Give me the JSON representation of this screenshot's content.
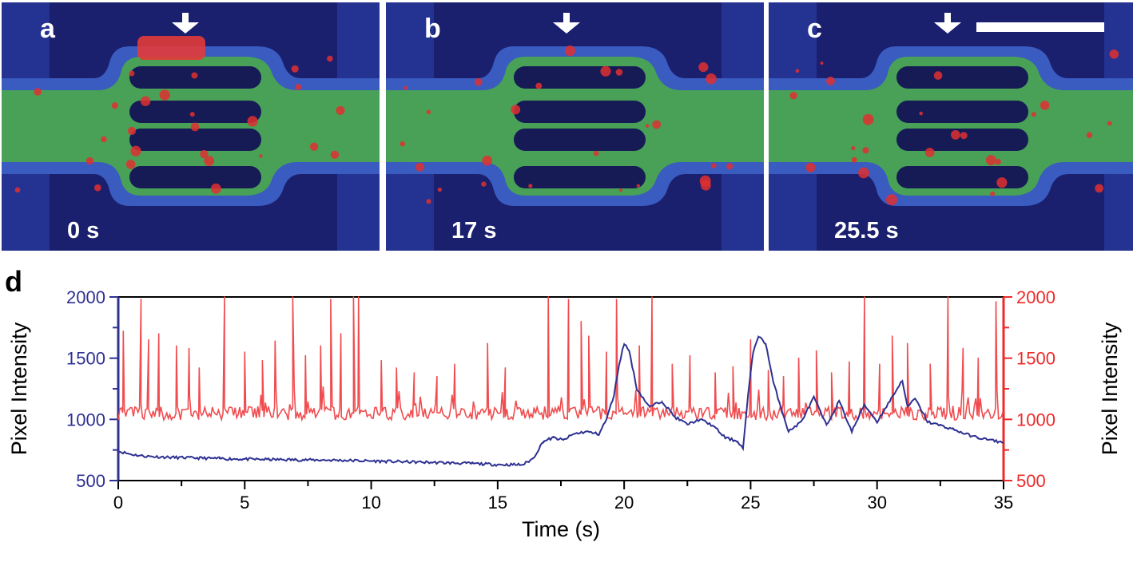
{
  "panels": [
    {
      "label": "a",
      "time": "0 s"
    },
    {
      "label": "b",
      "time": "17 s"
    },
    {
      "label": "c",
      "time": "25.5 s"
    }
  ],
  "colors": {
    "blue_series": "#2e3192",
    "red_series": "#f04c4f",
    "left_axis": "#2e3192",
    "right_axis": "#ee2a2a"
  },
  "chart_data": {
    "type": "line",
    "panel_label": "d",
    "xlabel": "Time (s)",
    "ylabel_left": "Pixel Intensity",
    "ylabel_right": "Pixel Intensity",
    "xlim": [
      0,
      35
    ],
    "ylim": [
      500,
      2000
    ],
    "xticks": [
      0,
      5,
      10,
      15,
      20,
      25,
      30,
      35
    ],
    "yticks": [
      500,
      1000,
      1500,
      2000
    ],
    "series": [
      {
        "axis": "left",
        "color": "#2e3192",
        "x": [
          0,
          0.5,
          1,
          2,
          3,
          4,
          5,
          6,
          7,
          8,
          9,
          10,
          11,
          12,
          13,
          14,
          15,
          16,
          16.4,
          16.8,
          17.2,
          17.6,
          18,
          18.5,
          19,
          19.3,
          19.6,
          19.8,
          20,
          20.2,
          20.5,
          21,
          21.5,
          22,
          22.5,
          23,
          23.5,
          24,
          24.5,
          24.7,
          24.9,
          25.1,
          25.3,
          25.6,
          25.9,
          26.2,
          26.5,
          27,
          27.5,
          28,
          28.5,
          29,
          29.5,
          30,
          30.5,
          31,
          31.2,
          31.5,
          32,
          32.5,
          33,
          33.5,
          34,
          35
        ],
        "values": [
          740,
          715,
          700,
          690,
          685,
          680,
          675,
          672,
          670,
          668,
          665,
          660,
          655,
          650,
          645,
          640,
          630,
          630,
          680,
          820,
          850,
          830,
          880,
          900,
          880,
          1000,
          1200,
          1450,
          1620,
          1560,
          1250,
          1100,
          1150,
          1020,
          960,
          1000,
          950,
          850,
          820,
          760,
          1200,
          1550,
          1680,
          1620,
          1300,
          1100,
          900,
          980,
          1180,
          950,
          1150,
          900,
          1120,
          980,
          1150,
          1320,
          1100,
          1170,
          980,
          950,
          920,
          880,
          850,
          810
        ]
      },
      {
        "axis": "right",
        "color": "#f04c4f",
        "baseline": 1050,
        "spike_times": [
          0.2,
          0.9,
          1.2,
          1.6,
          2.3,
          2.8,
          3.2,
          4.2,
          5.0,
          5.7,
          6.2,
          6.9,
          7.4,
          8.0,
          8.4,
          8.8,
          9.3,
          9.5,
          10.4,
          11.0,
          11.7,
          12.6,
          13.3,
          14.6,
          15.3,
          17.0,
          17.8,
          18.3,
          18.6,
          19.3,
          19.7,
          20.6,
          21.1,
          21.9,
          22.6,
          23.6,
          24.3,
          25.0,
          25.7,
          26.3,
          26.9,
          27.6,
          28.2,
          28.9,
          29.5,
          30.1,
          30.6,
          31.2,
          32.1,
          32.8,
          33.4,
          34.0,
          34.7
        ],
        "spike_values": [
          1720,
          1980,
          1650,
          1700,
          1600,
          1580,
          1420,
          2000,
          1550,
          1480,
          1640,
          2000,
          1520,
          1600,
          1980,
          1700,
          2000,
          2000,
          1480,
          1420,
          1380,
          1350,
          1450,
          1620,
          1420,
          2000,
          1980,
          1800,
          1680,
          1550,
          1980,
          1600,
          2000,
          1450,
          1520,
          1380,
          1430,
          1650,
          1400,
          1350,
          1500,
          1560,
          1380,
          1470,
          2000,
          1450,
          1680,
          1620,
          1450,
          2000,
          1580,
          1500,
          1960
        ]
      }
    ]
  }
}
